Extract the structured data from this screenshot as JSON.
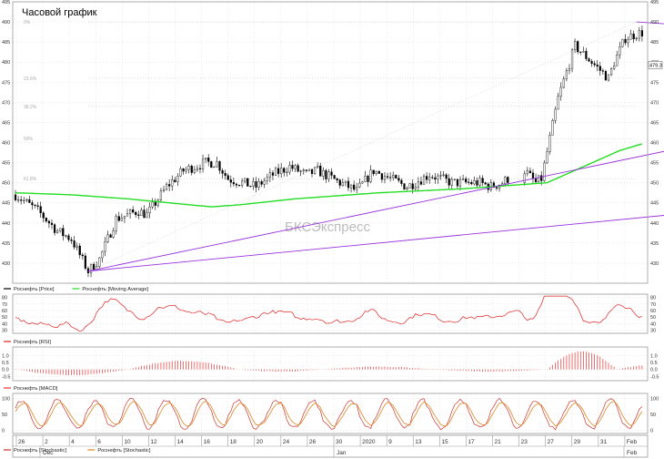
{
  "title": "Часовой график",
  "watermark": "БКСЭкспресс",
  "last_price_label": "479.3",
  "legends": {
    "price": [
      "Роснефть [Price]",
      "Роснефть [Moving Average]"
    ],
    "rsi": [
      "Роснефть [RSI]"
    ],
    "macd": [
      "Роснефть [MACD]"
    ],
    "stoch": [
      "Роснефть [Stochastic]",
      "Роснефть [Stochastic]"
    ]
  },
  "fib_labels": [
    "0%",
    "23.6%",
    "38.2%",
    "50%",
    "61.8%"
  ],
  "x_axis": {
    "day_labels": [
      "26",
      "2",
      "4",
      "6",
      "10",
      "12",
      "14",
      "16",
      "18",
      "20",
      "24",
      "26",
      "30",
      "2020",
      "9",
      "13",
      "15",
      "17",
      "21",
      "23",
      "27",
      "29",
      "31",
      "Feb"
    ],
    "month_labels": [
      "Dec",
      "Jan",
      "Feb"
    ]
  },
  "colors": {
    "candle": "#000000",
    "ma": "#22dd22",
    "trend": "#9933dd",
    "fib": "#bbbbbb",
    "rsi": "#dd2222",
    "macd": "#ee3333",
    "stoch_k": "#cc3333",
    "stoch_d": "#dd8822",
    "grid": "#d8d8d8",
    "watermark": "#bbbbbb"
  },
  "chart_data": [
    {
      "type": "candlestick",
      "panel": "price",
      "ylim": [
        425,
        495
      ],
      "yticks": [
        430,
        435,
        440,
        445,
        450,
        455,
        460,
        465,
        470,
        475,
        480,
        485,
        490,
        495
      ],
      "n_bars": 225,
      "close_path": [
        [
          0,
          447
        ],
        [
          8,
          443
        ],
        [
          15,
          438
        ],
        [
          20,
          436
        ],
        [
          23,
          432
        ],
        [
          26,
          428
        ],
        [
          30,
          431
        ],
        [
          36,
          441
        ],
        [
          44,
          443
        ],
        [
          47,
          442
        ],
        [
          54,
          449
        ],
        [
          60,
          453
        ],
        [
          68,
          455
        ],
        [
          72,
          455
        ],
        [
          76,
          451
        ],
        [
          86,
          449
        ],
        [
          92,
          452
        ],
        [
          98,
          454
        ],
        [
          104,
          452
        ],
        [
          108,
          453
        ],
        [
          116,
          450
        ],
        [
          122,
          448
        ],
        [
          128,
          453
        ],
        [
          134,
          451
        ],
        [
          140,
          449
        ],
        [
          148,
          452
        ],
        [
          156,
          450
        ],
        [
          160,
          450
        ],
        [
          166,
          450
        ],
        [
          170,
          449
        ],
        [
          174,
          450
        ],
        [
          176,
          451
        ],
        [
          182,
          453
        ],
        [
          186,
          450
        ],
        [
          188,
          451
        ],
        [
          194,
          471
        ],
        [
          200,
          484
        ],
        [
          206,
          480
        ],
        [
          212,
          476
        ],
        [
          214,
          480
        ],
        [
          218,
          486
        ],
        [
          222,
          487
        ],
        [
          228,
          488
        ],
        [
          230,
          486
        ],
        [
          236,
          482
        ],
        [
          240,
          480
        ],
        [
          246,
          480
        ],
        [
          252,
          483
        ],
        [
          258,
          481
        ],
        [
          262,
          479
        ],
        [
          268,
          477
        ],
        [
          272,
          475
        ],
        [
          276,
          473
        ],
        [
          278,
          472
        ],
        [
          284,
          469
        ],
        [
          288,
          468
        ],
        [
          294,
          476
        ],
        [
          300,
          480
        ],
        [
          306,
          482
        ],
        [
          310,
          481
        ],
        [
          314,
          480
        ],
        [
          318,
          479
        ]
      ],
      "moving_average": [
        [
          0,
          447.5
        ],
        [
          20,
          447
        ],
        [
          40,
          446
        ],
        [
          70,
          444
        ],
        [
          80,
          444.5
        ],
        [
          100,
          446
        ],
        [
          130,
          447.5
        ],
        [
          160,
          448.5
        ],
        [
          190,
          450
        ],
        [
          216,
          458
        ],
        [
          240,
          463
        ],
        [
          262,
          468
        ],
        [
          280,
          470.5
        ],
        [
          300,
          472
        ],
        [
          318,
          474
        ]
      ],
      "trend_lines": [
        {
          "from": [
            26,
            428
          ],
          "to": [
            330,
            472
          ]
        },
        {
          "from": [
            26,
            428
          ],
          "to": [
            330,
            448.5
          ]
        },
        {
          "from": [
            222,
            490
          ],
          "to": [
            330,
            485
          ]
        }
      ]
    },
    {
      "type": "line",
      "panel": "rsi",
      "name": "",
      "ylim": [
        25,
        85
      ],
      "yticks": [
        30,
        40,
        50,
        60,
        70,
        80
      ],
      "amplitude_note": ""
    },
    {
      "type": "bar",
      "panel": "macd",
      "ylim": [
        -0.8,
        1.6
      ],
      "yticks": [
        -0.5,
        0.0,
        0.5,
        1.0
      ],
      "humps": [
        [
          0,
          40,
          -0.4
        ],
        [
          40,
          80,
          0.6
        ],
        [
          80,
          110,
          -0.15
        ],
        [
          110,
          150,
          0.2
        ],
        [
          150,
          190,
          -0.15
        ],
        [
          190,
          215,
          1.3
        ],
        [
          215,
          260,
          0.5
        ],
        [
          260,
          295,
          -0.45
        ],
        [
          295,
          330,
          0.3
        ]
      ]
    },
    {
      "type": "line",
      "panel": "stochastic",
      "ylim": [
        -10,
        115
      ],
      "yticks": [
        0,
        50,
        100
      ]
    }
  ]
}
